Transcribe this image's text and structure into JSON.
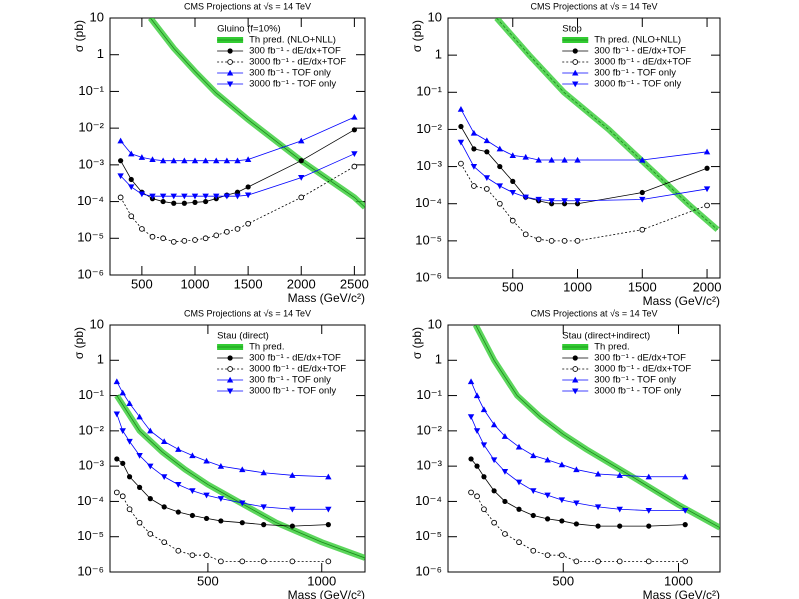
{
  "chart_data": [
    {
      "type": "line",
      "title": "CMS Projections at √s = 14 TeV",
      "legend_title": "Gluino (f=10%)",
      "xlabel": "Mass (GeV/c²)",
      "ylabel": "σ (pb)",
      "log_y": true,
      "xlim": [
        200,
        2600
      ],
      "xticks": [
        500,
        1000,
        1500,
        2000,
        2500
      ],
      "ylim": [
        1e-06,
        10
      ],
      "yticks": [
        {
          "value": 1e-06,
          "label": "10⁻⁶"
        },
        {
          "value": 1e-05,
          "label": "10⁻⁵"
        },
        {
          "value": 0.0001,
          "label": "10⁻⁴"
        },
        {
          "value": 0.001,
          "label": "10⁻³"
        },
        {
          "value": 0.01,
          "label": "10⁻²"
        },
        {
          "value": 0.1,
          "label": "10⁻¹"
        },
        1,
        10
      ],
      "series": [
        {
          "name": "Th pred. (NLO+NLL)",
          "color": "#33cc33",
          "band": true,
          "marker": null,
          "linestyle": "solid",
          "x": [
            580,
            800,
            1000,
            1200,
            1500,
            2000,
            2500,
            2600
          ],
          "values": [
            10,
            1.5,
            0.35,
            0.09,
            0.017,
            0.0013,
            0.00013,
            7e-05
          ]
        },
        {
          "name": "300 fb⁻¹ - dE/dx+TOF",
          "color": "#000000",
          "marker": "circle",
          "linestyle": "solid",
          "x": [
            300,
            400,
            500,
            600,
            700,
            800,
            900,
            1000,
            1100,
            1200,
            1300,
            1400,
            1500,
            2000,
            2500
          ],
          "values": [
            0.0013,
            0.0004,
            0.00018,
            0.00012,
            0.0001,
            9e-05,
            9e-05,
            9.5e-05,
            0.0001,
            0.00012,
            0.00015,
            0.00018,
            0.00025,
            0.0013,
            0.009
          ]
        },
        {
          "name": "3000 fb⁻¹ - dE/dx+TOF",
          "color": "#000000",
          "marker": "open-circle",
          "linestyle": "dashed",
          "x": [
            300,
            400,
            500,
            600,
            700,
            800,
            900,
            1000,
            1100,
            1200,
            1300,
            1400,
            1500,
            2000,
            2500
          ],
          "values": [
            0.00013,
            4e-05,
            1.8e-05,
            1.1e-05,
            1e-05,
            8e-06,
            8.5e-06,
            9e-06,
            1e-05,
            1.2e-05,
            1.5e-05,
            1.8e-05,
            2.5e-05,
            0.00013,
            0.0009
          ]
        },
        {
          "name": "300 fb⁻¹ - TOF only",
          "color": "#0000ff",
          "marker": "triangle-up",
          "linestyle": "solid",
          "x": [
            300,
            400,
            500,
            600,
            700,
            800,
            900,
            1000,
            1100,
            1200,
            1300,
            1400,
            1500,
            2000,
            2500
          ],
          "values": [
            0.0045,
            0.002,
            0.0016,
            0.0014,
            0.0013,
            0.0013,
            0.0013,
            0.0013,
            0.0013,
            0.0013,
            0.0013,
            0.0013,
            0.0014,
            0.0045,
            0.02
          ]
        },
        {
          "name": "3000 fb⁻¹ - TOF only",
          "color": "#0000ff",
          "marker": "triangle-down",
          "linestyle": "solid",
          "x": [
            300,
            400,
            500,
            600,
            700,
            800,
            900,
            1000,
            1100,
            1200,
            1300,
            1400,
            1500,
            2000,
            2500
          ],
          "values": [
            0.0005,
            0.00025,
            0.00016,
            0.00014,
            0.00014,
            0.00014,
            0.00014,
            0.00014,
            0.00014,
            0.00014,
            0.00014,
            0.00014,
            0.00015,
            0.00045,
            0.002
          ]
        }
      ]
    },
    {
      "type": "line",
      "title": "CMS Projections at √s = 14 TeV",
      "legend_title": "Stop",
      "xlabel": "Mass (GeV/c²)",
      "ylabel": "σ (pb)",
      "log_y": true,
      "xlim": [
        0,
        2100
      ],
      "xticks": [
        500,
        1000,
        1500,
        2000
      ],
      "ylim": [
        1e-06,
        10
      ],
      "yticks": [
        {
          "value": 1e-06,
          "label": "10⁻⁶"
        },
        {
          "value": 1e-05,
          "label": "10⁻⁵"
        },
        {
          "value": 0.0001,
          "label": "10⁻⁴"
        },
        {
          "value": 0.001,
          "label": "10⁻³"
        },
        {
          "value": 0.01,
          "label": "10⁻²"
        },
        {
          "value": 0.1,
          "label": "10⁻¹"
        },
        1,
        10
      ],
      "series": [
        {
          "name": "Th pred. (NLO+NLL)",
          "color": "#33cc33",
          "band": true,
          "marker": null,
          "linestyle": "dashed",
          "x": [
            375,
            627,
            895,
            1240,
            1545,
            1852,
            2081
          ],
          "values": [
            10,
            1,
            0.1,
            0.01,
            0.001,
            0.0001,
            2e-05
          ]
        },
        {
          "name": "300 fb⁻¹ - dE/dx+TOF",
          "color": "#000000",
          "marker": "circle",
          "linestyle": "solid",
          "x": [
            100,
            200,
            300,
            400,
            500,
            600,
            700,
            800,
            900,
            1000,
            1500,
            2000
          ],
          "values": [
            0.012,
            0.003,
            0.0025,
            0.001,
            0.0004,
            0.00015,
            0.00012,
            0.0001,
            0.0001,
            0.0001,
            0.0002,
            0.0009
          ]
        },
        {
          "name": "3000 fb⁻¹ - dE/dx+TOF",
          "color": "#000000",
          "marker": "open-circle",
          "linestyle": "dashed",
          "x": [
            100,
            200,
            300,
            400,
            500,
            600,
            700,
            800,
            900,
            1000,
            1500,
            2000
          ],
          "values": [
            0.0012,
            0.0003,
            0.00025,
            0.0001,
            3.5e-05,
            1.5e-05,
            1.1e-05,
            1e-05,
            1e-05,
            1e-05,
            2e-05,
            9e-05
          ]
        },
        {
          "name": "300 fb⁻¹ - TOF only",
          "color": "#0000ff",
          "marker": "triangle-up",
          "linestyle": "solid",
          "x": [
            100,
            200,
            300,
            400,
            500,
            600,
            700,
            800,
            900,
            1000,
            1500,
            2000
          ],
          "values": [
            0.035,
            0.008,
            0.005,
            0.003,
            0.002,
            0.0018,
            0.0015,
            0.0015,
            0.0015,
            0.0015,
            0.0015,
            0.0025
          ]
        },
        {
          "name": "3000 fb⁻¹ - TOF only",
          "color": "#0000ff",
          "marker": "triangle-down",
          "linestyle": "solid",
          "x": [
            100,
            200,
            300,
            400,
            500,
            600,
            700,
            800,
            900,
            1000,
            1500,
            2000
          ],
          "values": [
            0.0045,
            0.001,
            0.0005,
            0.0003,
            0.0002,
            0.00015,
            0.00013,
            0.00012,
            0.00012,
            0.00012,
            0.00013,
            0.00025
          ]
        }
      ]
    },
    {
      "type": "line",
      "title": "CMS Projections at √s = 14 TeV",
      "legend_title": "Stau (direct)",
      "xlabel": "Mass (GeV/c²)",
      "ylabel": "σ (pb)",
      "log_y": true,
      "xlim": [
        70,
        1190
      ],
      "xticks": [
        500,
        1000
      ],
      "ylim": [
        1e-06,
        10
      ],
      "yticks": [
        {
          "value": 1e-06,
          "label": "10⁻⁶"
        },
        {
          "value": 1e-05,
          "label": "10⁻⁵"
        },
        {
          "value": 0.0001,
          "label": "10⁻⁴"
        },
        {
          "value": 0.001,
          "label": "10⁻³"
        },
        {
          "value": 0.01,
          "label": "10⁻²"
        },
        {
          "value": 0.1,
          "label": "10⁻¹"
        },
        1,
        10
      ],
      "series": [
        {
          "name": "Th pred.",
          "color": "#33cc33",
          "band": true,
          "marker": null,
          "linestyle": "solid",
          "x": [
            100,
            200,
            300,
            400,
            500,
            600,
            800,
            1000,
            1190
          ],
          "values": [
            0.1,
            0.01,
            0.0025,
            0.0008,
            0.0003,
            0.00013,
            2.5e-05,
            7e-06,
            2.5e-06
          ]
        },
        {
          "name": "300 fb⁻¹ - dE/dx+TOF",
          "color": "#000000",
          "marker": "circle",
          "linestyle": "solid",
          "x": [
            100,
            126,
            156,
            200,
            247,
            308,
            370,
            432,
            494,
            557,
            651,
            745,
            871,
            1029
          ],
          "values": [
            0.0016,
            0.0012,
            0.0005,
            0.00025,
            0.00012,
            7e-05,
            5e-05,
            4e-05,
            3.3e-05,
            2.8e-05,
            2.5e-05,
            2.2e-05,
            2e-05,
            2.2e-05
          ]
        },
        {
          "name": "3000 fb⁻¹ - dE/dx+TOF",
          "color": "#000000",
          "marker": "open-circle",
          "linestyle": "dashed",
          "x": [
            100,
            126,
            156,
            200,
            247,
            308,
            370,
            432,
            494,
            557,
            651,
            745,
            871,
            1029
          ],
          "values": [
            0.00018,
            0.00014,
            6e-05,
            2.5e-05,
            1.2e-05,
            7e-06,
            4e-06,
            3e-06,
            3e-06,
            2e-06,
            2e-06,
            2e-06,
            2e-06,
            2e-06
          ]
        },
        {
          "name": "300 fb⁻¹ - TOF only",
          "color": "#0000ff",
          "marker": "triangle-up",
          "linestyle": "solid",
          "x": [
            100,
            126,
            156,
            200,
            247,
            308,
            370,
            432,
            494,
            557,
            651,
            745,
            871,
            1029
          ],
          "values": [
            0.25,
            0.12,
            0.06,
            0.025,
            0.01,
            0.005,
            0.003,
            0.002,
            0.0014,
            0.001,
            0.0008,
            0.00065,
            0.00055,
            0.0005
          ]
        },
        {
          "name": "3000 fb⁻¹ - TOF only",
          "color": "#0000ff",
          "marker": "triangle-down",
          "linestyle": "solid",
          "x": [
            100,
            126,
            156,
            200,
            247,
            308,
            370,
            432,
            494,
            557,
            651,
            745,
            871,
            1029
          ],
          "values": [
            0.03,
            0.01,
            0.005,
            0.002,
            0.001,
            0.0005,
            0.0003,
            0.0002,
            0.00015,
            0.00012,
            9e-05,
            7e-05,
            6e-05,
            6e-05
          ]
        }
      ]
    },
    {
      "type": "line",
      "title": "CMS Projections at √s = 14 TeV",
      "legend_title": "Stau (direct+indirect)",
      "xlabel": "Mass (GeV/c²)",
      "ylabel": "σ (pb)",
      "log_y": true,
      "xlim": [
        0,
        1180
      ],
      "xticks": [
        500,
        1000
      ],
      "ylim": [
        1e-06,
        10
      ],
      "yticks": [
        {
          "value": 1e-06,
          "label": "10⁻⁶"
        },
        {
          "value": 1e-05,
          "label": "10⁻⁵"
        },
        {
          "value": 0.0001,
          "label": "10⁻⁴"
        },
        {
          "value": 0.001,
          "label": "10⁻³"
        },
        {
          "value": 0.01,
          "label": "10⁻²"
        },
        {
          "value": 0.1,
          "label": "10⁻¹"
        },
        1,
        10
      ],
      "series": [
        {
          "name": "Th pred.",
          "color": "#33cc33",
          "band": true,
          "marker": null,
          "linestyle": "solid",
          "x": [
            120,
            200,
            300,
            400,
            500,
            600,
            800,
            1000,
            1180
          ],
          "values": [
            10,
            1,
            0.1,
            0.025,
            0.008,
            0.003,
            0.0005,
            8e-05,
            1.8e-05
          ]
        },
        {
          "name": "300 fb⁻¹ - dE/dx+TOF",
          "color": "#000000",
          "marker": "circle",
          "linestyle": "solid",
          "x": [
            100,
            126,
            156,
            200,
            247,
            308,
            370,
            432,
            494,
            557,
            651,
            745,
            871,
            1029
          ],
          "values": [
            0.0016,
            0.001,
            0.0005,
            0.0002,
            0.0001,
            6e-05,
            4e-05,
            3.2e-05,
            2.8e-05,
            2.3e-05,
            2e-05,
            2e-05,
            2e-05,
            2.2e-05
          ]
        },
        {
          "name": "3000 fb⁻¹ - dE/dx+TOF",
          "color": "#000000",
          "marker": "open-circle",
          "linestyle": "dashed",
          "x": [
            100,
            126,
            156,
            200,
            247,
            308,
            370,
            432,
            494,
            557,
            651,
            745,
            871,
            1029
          ],
          "values": [
            0.00018,
            0.00014,
            6e-05,
            2.5e-05,
            1.2e-05,
            7e-06,
            4e-06,
            3e-06,
            3e-06,
            2e-06,
            2e-06,
            2e-06,
            2e-06,
            2e-06
          ]
        },
        {
          "name": "300 fb⁻¹ - TOF only",
          "color": "#0000ff",
          "marker": "triangle-up",
          "linestyle": "solid",
          "x": [
            100,
            126,
            156,
            200,
            247,
            308,
            370,
            432,
            494,
            557,
            651,
            745,
            871,
            1029
          ],
          "values": [
            0.25,
            0.1,
            0.04,
            0.015,
            0.007,
            0.0035,
            0.002,
            0.0015,
            0.0011,
            0.0008,
            0.0006,
            0.00055,
            0.0005,
            0.0005
          ]
        },
        {
          "name": "3000 fb⁻¹ - TOF only",
          "color": "#0000ff",
          "marker": "triangle-down",
          "linestyle": "solid",
          "x": [
            100,
            126,
            156,
            200,
            247,
            308,
            370,
            432,
            494,
            557,
            651,
            745,
            871,
            1029
          ],
          "values": [
            0.025,
            0.01,
            0.004,
            0.0015,
            0.0007,
            0.00035,
            0.0002,
            0.00015,
            0.00011,
            9e-05,
            7e-05,
            6e-05,
            5.5e-05,
            5.5e-05
          ]
        }
      ]
    }
  ]
}
